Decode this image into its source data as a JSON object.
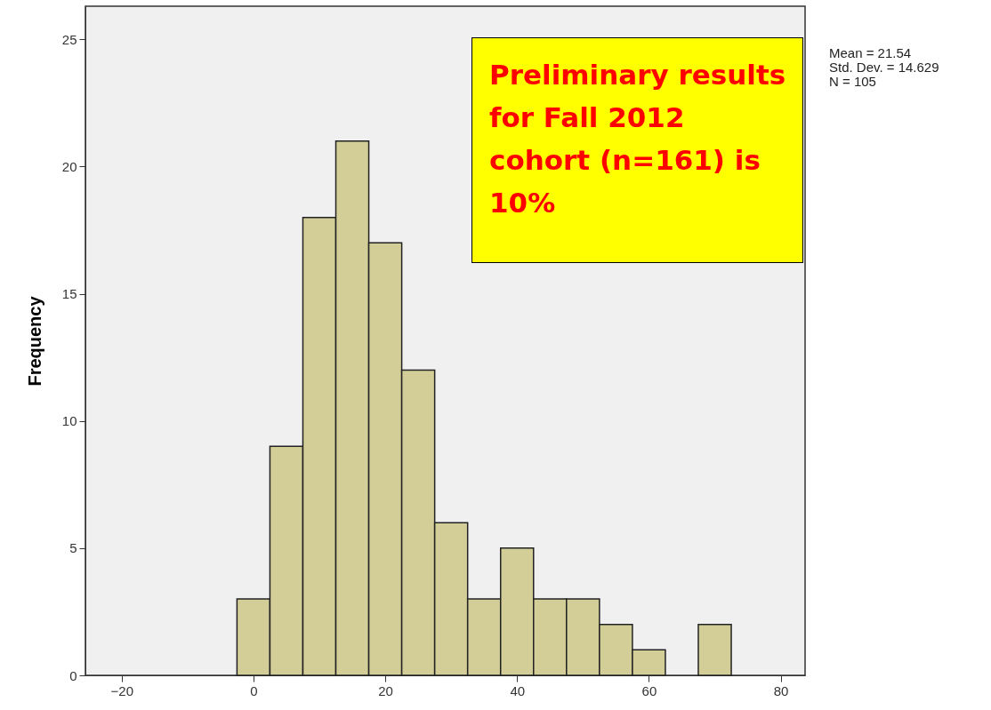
{
  "chart_data": {
    "type": "histogram",
    "ylabel": "Frequency",
    "bins": [
      -2.5,
      2.5,
      7.5,
      12.5,
      17.5,
      22.5,
      27.5,
      32.5,
      37.5,
      42.5,
      47.5,
      52.5,
      57.5,
      62.5,
      67.5,
      72.5
    ],
    "values": [
      3,
      9,
      18,
      21,
      17,
      12,
      6,
      3,
      5,
      3,
      3,
      2,
      1,
      0,
      2
    ],
    "color": "#d3ce98",
    "xlim": [
      -25.5,
      83.7
    ],
    "xticks": [
      -20,
      0,
      20,
      40,
      60,
      80
    ],
    "ylim": [
      0,
      26.3
    ],
    "yticks": [
      0,
      5,
      10,
      15,
      20,
      25
    ],
    "grid": false,
    "annotations": [
      "Preliminary results for Fall 2012 cohort (n=161) is 10%",
      "Mean = 21.54",
      "Std. Dev. = 14.629",
      "N = 105"
    ]
  }
}
